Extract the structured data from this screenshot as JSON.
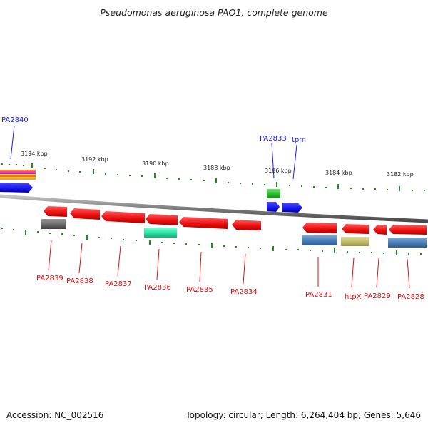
{
  "title": "Pseudomonas aeruginosa PAO1, complete genome",
  "footer": {
    "accession": "Accession: NC_002516",
    "summary": "Topology: circular; Length: 6,264,404 bp; Genes: 5,646"
  },
  "ruler": {
    "tick_labels": [
      "3194 kbp",
      "3192 kbp",
      "3190 kbp",
      "3188 kbp",
      "3186 kbp",
      "3184 kbp",
      "3182 kbp"
    ]
  },
  "genes": [
    {
      "label": "PA2840",
      "color": "#1a1aee",
      "strand": "forward"
    },
    {
      "label": "PA2833",
      "color": "#1a1aee",
      "strand": "forward"
    },
    {
      "label": "tpm",
      "color": "#1a1aee",
      "strand": "forward"
    },
    {
      "label": "PA2839",
      "color": "#dd1111",
      "strand": "reverse"
    },
    {
      "label": "PA2838",
      "color": "#dd1111",
      "strand": "reverse"
    },
    {
      "label": "PA2837",
      "color": "#dd1111",
      "strand": "reverse"
    },
    {
      "label": "PA2836",
      "color": "#dd1111",
      "strand": "reverse"
    },
    {
      "label": "PA2835",
      "color": "#dd1111",
      "strand": "reverse"
    },
    {
      "label": "PA2834",
      "color": "#dd1111",
      "strand": "reverse"
    },
    {
      "label": "PA2831",
      "color": "#dd1111",
      "strand": "reverse"
    },
    {
      "label": "htpX",
      "color": "#dd1111",
      "strand": "reverse"
    },
    {
      "label": "PA2829",
      "color": "#dd1111",
      "strand": "reverse"
    },
    {
      "label": "PA2828",
      "color": "#dd1111",
      "strand": "reverse"
    }
  ],
  "colors": {
    "forward_gene": "#1a1aee",
    "reverse_gene": "#dd1111",
    "backbone": "#8a8a8a",
    "ruler_tick": "#1e8c1e"
  }
}
